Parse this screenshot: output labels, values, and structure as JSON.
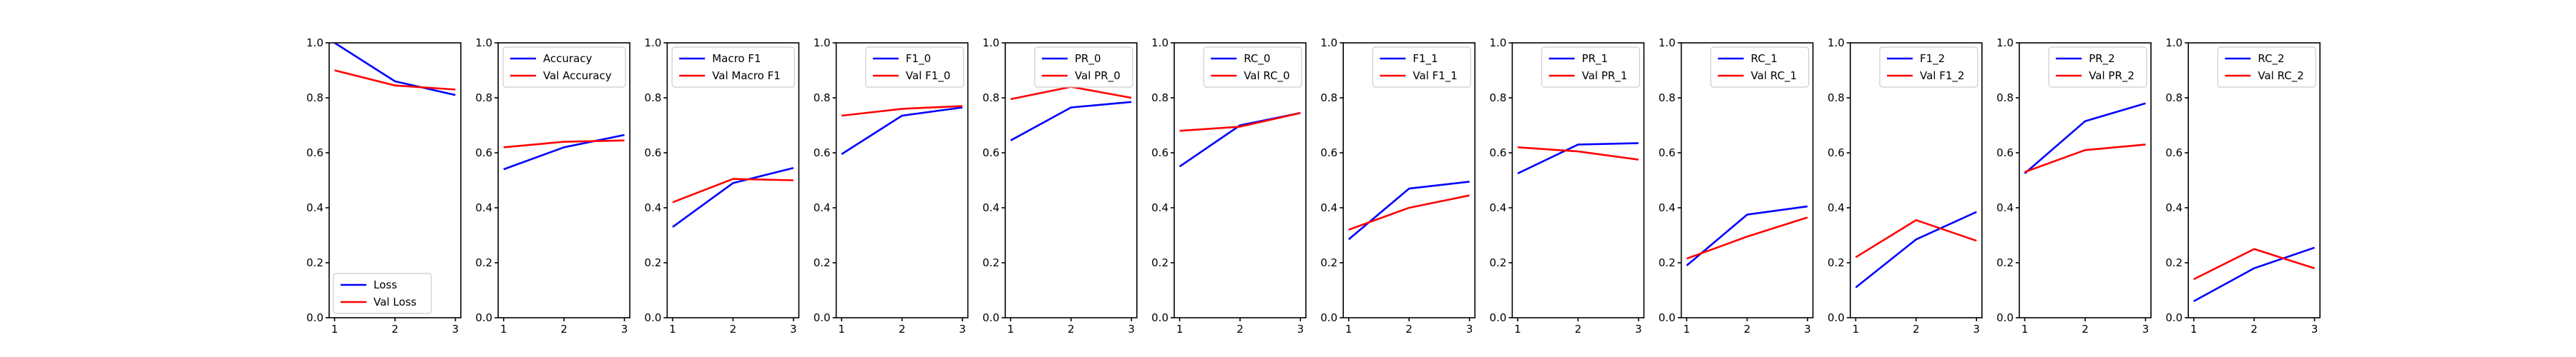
{
  "chart_data": [
    {
      "type": "line",
      "legend_loc": "lower-left",
      "x": [
        1,
        2,
        3
      ],
      "xlim": [
        1,
        3
      ],
      "ylim": [
        0,
        1
      ],
      "x_ticks": [
        "1",
        "2",
        "3"
      ],
      "y_ticks": [
        "0.0",
        "0.2",
        "0.4",
        "0.6",
        "0.8",
        "1.0"
      ],
      "series": [
        {
          "name": "Loss",
          "color": "#0000ff",
          "values": [
            1.0,
            0.86,
            0.81
          ]
        },
        {
          "name": "Val Loss",
          "color": "#ff0000",
          "values": [
            0.9,
            0.845,
            0.83
          ]
        }
      ]
    },
    {
      "type": "line",
      "legend_loc": "upper-right",
      "x": [
        1,
        2,
        3
      ],
      "xlim": [
        1,
        3
      ],
      "ylim": [
        0,
        1
      ],
      "x_ticks": [
        "1",
        "2",
        "3"
      ],
      "y_ticks": [
        "0.0",
        "0.2",
        "0.4",
        "0.6",
        "0.8",
        "1.0"
      ],
      "series": [
        {
          "name": "Accuracy",
          "color": "#0000ff",
          "values": [
            0.54,
            0.62,
            0.665
          ]
        },
        {
          "name": "Val Accuracy",
          "color": "#ff0000",
          "values": [
            0.62,
            0.64,
            0.645
          ]
        }
      ]
    },
    {
      "type": "line",
      "legend_loc": "upper-right",
      "x": [
        1,
        2,
        3
      ],
      "xlim": [
        1,
        3
      ],
      "ylim": [
        0,
        1
      ],
      "x_ticks": [
        "1",
        "2",
        "3"
      ],
      "y_ticks": [
        "0.0",
        "0.2",
        "0.4",
        "0.6",
        "0.8",
        "1.0"
      ],
      "series": [
        {
          "name": "Macro F1",
          "color": "#0000ff",
          "values": [
            0.33,
            0.49,
            0.545
          ]
        },
        {
          "name": "Val Macro F1",
          "color": "#ff0000",
          "values": [
            0.42,
            0.505,
            0.5
          ]
        }
      ]
    },
    {
      "type": "line",
      "legend_loc": "upper-right",
      "x": [
        1,
        2,
        3
      ],
      "xlim": [
        1,
        3
      ],
      "ylim": [
        0,
        1
      ],
      "x_ticks": [
        "1",
        "2",
        "3"
      ],
      "y_ticks": [
        "0.0",
        "0.2",
        "0.4",
        "0.6",
        "0.8",
        "1.0"
      ],
      "series": [
        {
          "name": "F1_0",
          "color": "#0000ff",
          "values": [
            0.595,
            0.735,
            0.765
          ]
        },
        {
          "name": "Val F1_0",
          "color": "#ff0000",
          "values": [
            0.735,
            0.76,
            0.77
          ]
        }
      ]
    },
    {
      "type": "line",
      "legend_loc": "upper-right",
      "x": [
        1,
        2,
        3
      ],
      "xlim": [
        1,
        3
      ],
      "ylim": [
        0,
        1
      ],
      "x_ticks": [
        "1",
        "2",
        "3"
      ],
      "y_ticks": [
        "0.0",
        "0.2",
        "0.4",
        "0.6",
        "0.8",
        "1.0"
      ],
      "series": [
        {
          "name": "PR_0",
          "color": "#0000ff",
          "values": [
            0.645,
            0.765,
            0.785
          ]
        },
        {
          "name": "Val PR_0",
          "color": "#ff0000",
          "values": [
            0.795,
            0.84,
            0.8
          ]
        }
      ]
    },
    {
      "type": "line",
      "legend_loc": "upper-right",
      "x": [
        1,
        2,
        3
      ],
      "xlim": [
        1,
        3
      ],
      "ylim": [
        0,
        1
      ],
      "x_ticks": [
        "1",
        "2",
        "3"
      ],
      "y_ticks": [
        "0.0",
        "0.2",
        "0.4",
        "0.6",
        "0.8",
        "1.0"
      ],
      "series": [
        {
          "name": "RC_0",
          "color": "#0000ff",
          "values": [
            0.55,
            0.7,
            0.745
          ]
        },
        {
          "name": "Val RC_0",
          "color": "#ff0000",
          "values": [
            0.68,
            0.695,
            0.745
          ]
        }
      ]
    },
    {
      "type": "line",
      "legend_loc": "upper-right",
      "x": [
        1,
        2,
        3
      ],
      "xlim": [
        1,
        3
      ],
      "ylim": [
        0,
        1
      ],
      "x_ticks": [
        "1",
        "2",
        "3"
      ],
      "y_ticks": [
        "0.0",
        "0.2",
        "0.4",
        "0.6",
        "0.8",
        "1.0"
      ],
      "series": [
        {
          "name": "F1_1",
          "color": "#0000ff",
          "values": [
            0.285,
            0.47,
            0.495
          ]
        },
        {
          "name": "Val F1_1",
          "color": "#ff0000",
          "values": [
            0.32,
            0.4,
            0.445
          ]
        }
      ]
    },
    {
      "type": "line",
      "legend_loc": "upper-right",
      "x": [
        1,
        2,
        3
      ],
      "xlim": [
        1,
        3
      ],
      "ylim": [
        0,
        1
      ],
      "x_ticks": [
        "1",
        "2",
        "3"
      ],
      "y_ticks": [
        "0.0",
        "0.2",
        "0.4",
        "0.6",
        "0.8",
        "1.0"
      ],
      "series": [
        {
          "name": "PR_1",
          "color": "#0000ff",
          "values": [
            0.525,
            0.63,
            0.635
          ]
        },
        {
          "name": "Val PR_1",
          "color": "#ff0000",
          "values": [
            0.62,
            0.605,
            0.575
          ]
        }
      ]
    },
    {
      "type": "line",
      "legend_loc": "upper-right",
      "x": [
        1,
        2,
        3
      ],
      "xlim": [
        1,
        3
      ],
      "ylim": [
        0,
        1
      ],
      "x_ticks": [
        "1",
        "2",
        "3"
      ],
      "y_ticks": [
        "0.0",
        "0.2",
        "0.4",
        "0.6",
        "0.8",
        "1.0"
      ],
      "series": [
        {
          "name": "RC_1",
          "color": "#0000ff",
          "values": [
            0.19,
            0.375,
            0.405
          ]
        },
        {
          "name": "Val RC_1",
          "color": "#ff0000",
          "values": [
            0.215,
            0.295,
            0.365
          ]
        }
      ]
    },
    {
      "type": "line",
      "legend_loc": "upper-right",
      "x": [
        1,
        2,
        3
      ],
      "xlim": [
        1,
        3
      ],
      "ylim": [
        0,
        1
      ],
      "x_ticks": [
        "1",
        "2",
        "3"
      ],
      "y_ticks": [
        "0.0",
        "0.2",
        "0.4",
        "0.6",
        "0.8",
        "1.0"
      ],
      "series": [
        {
          "name": "F1_2",
          "color": "#0000ff",
          "values": [
            0.11,
            0.285,
            0.385
          ]
        },
        {
          "name": "Val F1_2",
          "color": "#ff0000",
          "values": [
            0.22,
            0.355,
            0.28
          ]
        }
      ]
    },
    {
      "type": "line",
      "legend_loc": "upper-right",
      "x": [
        1,
        2,
        3
      ],
      "xlim": [
        1,
        3
      ],
      "ylim": [
        0,
        1
      ],
      "x_ticks": [
        "1",
        "2",
        "3"
      ],
      "y_ticks": [
        "0.0",
        "0.2",
        "0.4",
        "0.6",
        "0.8",
        "1.0"
      ],
      "series": [
        {
          "name": "PR_2",
          "color": "#0000ff",
          "values": [
            0.525,
            0.715,
            0.78
          ]
        },
        {
          "name": "Val PR_2",
          "color": "#ff0000",
          "values": [
            0.53,
            0.61,
            0.63
          ]
        }
      ]
    },
    {
      "type": "line",
      "legend_loc": "upper-right",
      "x": [
        1,
        2,
        3
      ],
      "xlim": [
        1,
        3
      ],
      "ylim": [
        0,
        1
      ],
      "x_ticks": [
        "1",
        "2",
        "3"
      ],
      "y_ticks": [
        "0.0",
        "0.2",
        "0.4",
        "0.6",
        "0.8",
        "1.0"
      ],
      "series": [
        {
          "name": "RC_2",
          "color": "#0000ff",
          "values": [
            0.06,
            0.18,
            0.255
          ]
        },
        {
          "name": "Val RC_2",
          "color": "#ff0000",
          "values": [
            0.14,
            0.25,
            0.18
          ]
        }
      ]
    }
  ]
}
